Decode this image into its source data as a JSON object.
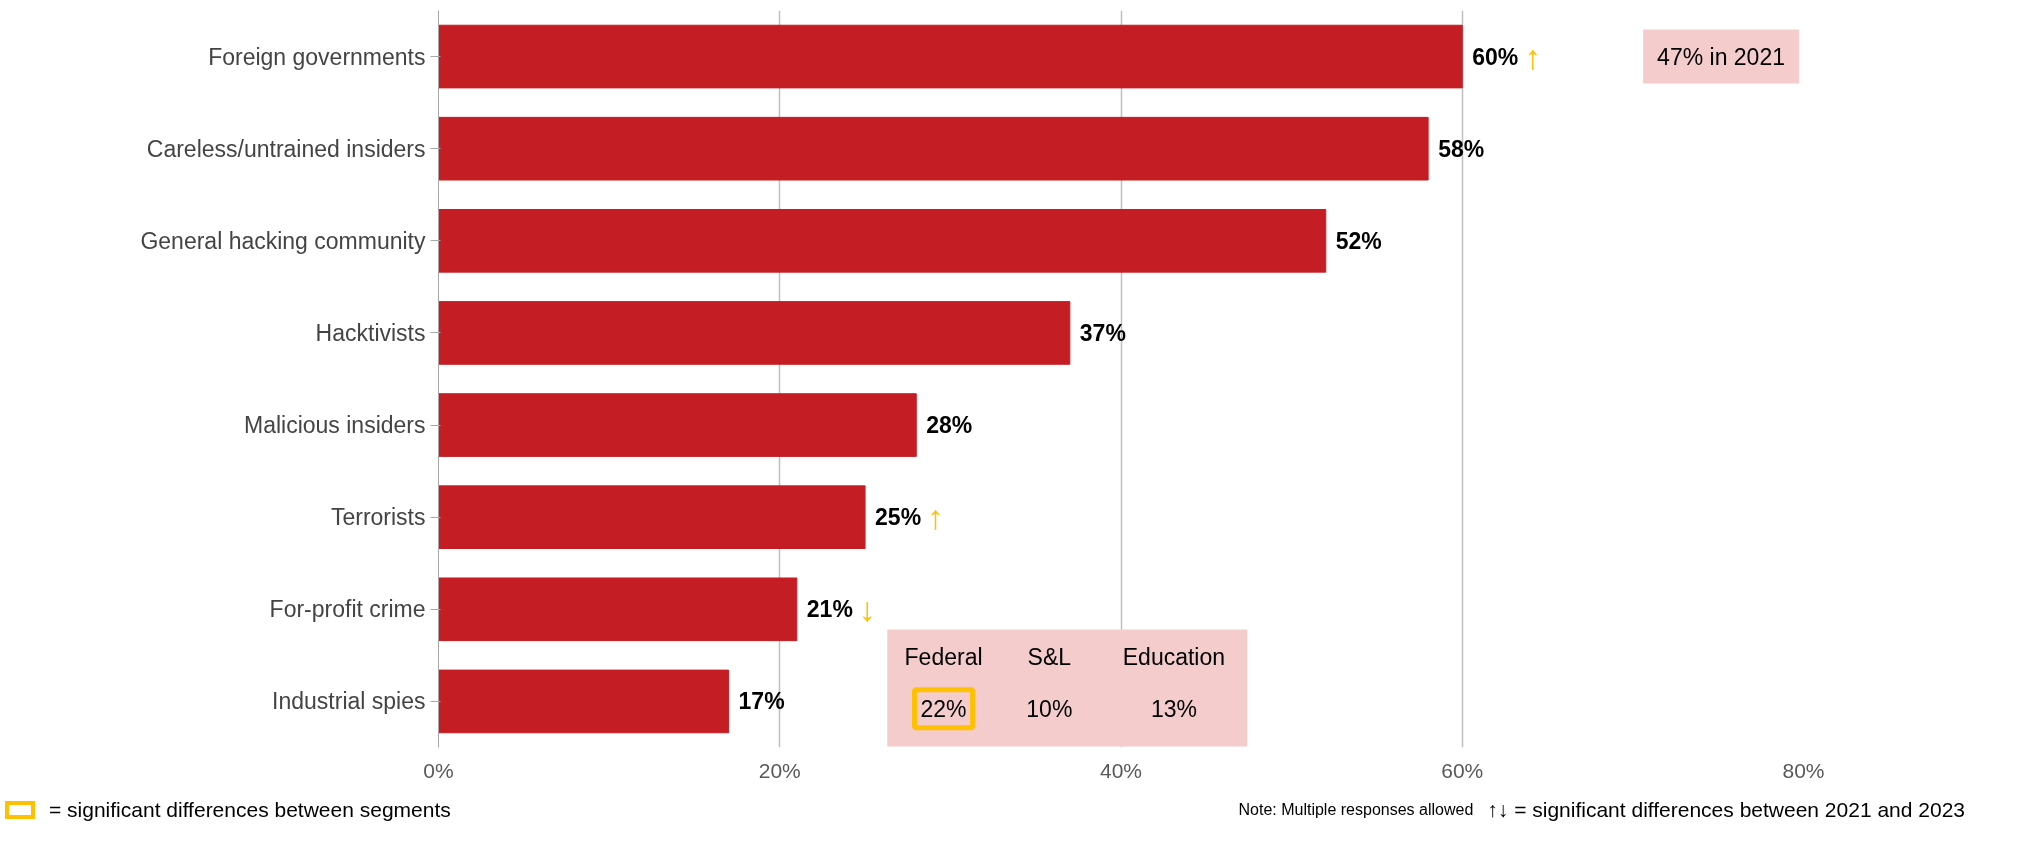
{
  "chart_data": {
    "type": "bar",
    "orientation": "horizontal",
    "categories": [
      "Foreign governments",
      "Careless/untrained insiders",
      "General hacking community",
      "Hacktivists",
      "Malicious insiders",
      "Terrorists",
      "For-profit crime",
      "Industrial spies"
    ],
    "values": [
      60,
      58,
      52,
      37,
      28,
      25,
      21,
      17
    ],
    "color": "#c41e24",
    "xlim": [
      0,
      80
    ],
    "xticks": [
      {
        "value": 0,
        "label": "0%"
      },
      {
        "value": 20,
        "label": "20%"
      },
      {
        "value": 40,
        "label": "40%"
      },
      {
        "value": 60,
        "label": "60%"
      },
      {
        "value": 80,
        "label": "80%"
      }
    ],
    "grid": "x",
    "value_labels": [
      "60%",
      "58%",
      "52%",
      "37%",
      "28%",
      "25%",
      "21%",
      "17%"
    ],
    "annotations": [
      "47% in 2021",
      "Federal",
      "S&L",
      "Education",
      "22%",
      "10%",
      "13%",
      "= significant differences between segments",
      "Note: Multiple responses allowed",
      "↑↓ = significant differences between 2021 and 2023",
      {
        "text": "↑",
        "x": 60,
        "y": "Foreign governments"
      },
      {
        "text": "↑",
        "x": 25,
        "y": "Terrorists"
      },
      {
        "text": "↓",
        "x": 21,
        "y": "For-profit crime"
      }
    ]
  }
}
